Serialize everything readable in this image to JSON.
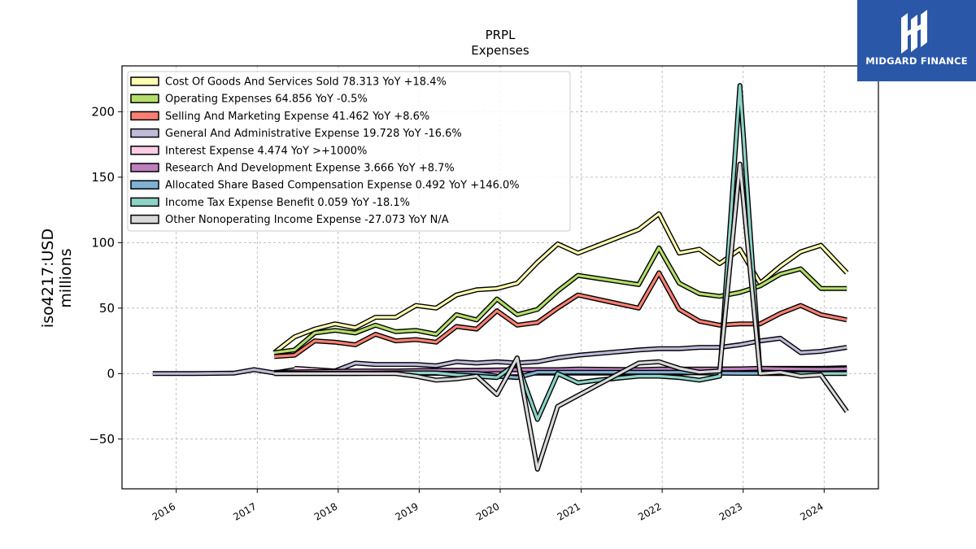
{
  "chart_data": {
    "type": "line",
    "title": "PRPL",
    "subtitle": "Expenses",
    "ylabel": "iso4217:USD",
    "ylabel2": "millions",
    "ylim": [
      -88,
      235
    ],
    "xlim": [
      2015.33,
      2024.67
    ],
    "yticks": [
      -50,
      0,
      50,
      100,
      150,
      200
    ],
    "xticks": [
      "2016",
      "2017",
      "2018",
      "2019",
      "2020",
      "2021",
      "2022",
      "2023",
      "2024"
    ],
    "grid": true,
    "legend_position": "upper-left",
    "series": [
      {
        "name": "Cost Of Goods And Services Sold",
        "latest": "78.313",
        "yoy": "YoY +18.4%",
        "color": "#ffffb3",
        "x": [
          2017.21,
          2017.46,
          2017.71,
          2017.96,
          2018.21,
          2018.46,
          2018.71,
          2018.96,
          2019.21,
          2019.46,
          2019.71,
          2019.96,
          2020.21,
          2020.46,
          2020.71,
          2020.96,
          2021.71,
          2021.96,
          2022.21,
          2022.46,
          2022.71,
          2022.96,
          2023.21,
          2023.46,
          2023.71,
          2023.96,
          2024.28
        ],
        "y": [
          16,
          28,
          34,
          38,
          35,
          43,
          43,
          52,
          50,
          60,
          64,
          65,
          69,
          85,
          99,
          92,
          110,
          122,
          92,
          95,
          84,
          95,
          69,
          82,
          93,
          98,
          77
        ]
      },
      {
        "name": "Operating Expenses",
        "latest": "64.856",
        "yoy": "YoY -0.5%",
        "color": "#b3de69",
        "x": [
          2017.21,
          2017.46,
          2017.71,
          2017.96,
          2018.21,
          2018.46,
          2018.71,
          2018.96,
          2019.21,
          2019.46,
          2019.71,
          2019.96,
          2020.21,
          2020.46,
          2020.71,
          2020.96,
          2021.71,
          2021.96,
          2022.21,
          2022.46,
          2022.71,
          2022.96,
          2023.21,
          2023.46,
          2023.71,
          2023.96,
          2024.28
        ],
        "y": [
          16,
          18,
          31,
          33,
          31,
          37,
          32,
          33,
          30,
          45,
          41,
          57,
          45,
          49,
          63,
          75,
          68,
          96,
          69,
          61,
          59,
          62,
          67,
          76,
          80,
          65,
          65
        ]
      },
      {
        "name": "Selling And Marketing Expense",
        "latest": "41.462",
        "yoy": "YoY +8.6%",
        "color": "#fb8072",
        "x": [
          2017.21,
          2017.46,
          2017.71,
          2017.96,
          2018.21,
          2018.46,
          2018.71,
          2018.96,
          2019.21,
          2019.46,
          2019.71,
          2019.96,
          2020.21,
          2020.46,
          2020.71,
          2020.96,
          2021.71,
          2021.96,
          2022.21,
          2022.46,
          2022.71,
          2022.96,
          2023.21,
          2023.46,
          2023.71,
          2023.96,
          2024.28
        ],
        "y": [
          13,
          14,
          25,
          24,
          22,
          30,
          25,
          26,
          24,
          36,
          34,
          48,
          37,
          39,
          50,
          60,
          50,
          77,
          49,
          40,
          37,
          38,
          38,
          46,
          52,
          45,
          41
        ]
      },
      {
        "name": "General And Administrative Expense",
        "latest": "19.728",
        "yoy": "YoY -16.6%",
        "color": "#bebada",
        "x": [
          2015.71,
          2016.21,
          2016.71,
          2016.96,
          2017.21,
          2017.46,
          2017.71,
          2017.96,
          2018.21,
          2018.46,
          2018.71,
          2018.96,
          2019.21,
          2019.46,
          2019.71,
          2019.96,
          2020.21,
          2020.46,
          2020.71,
          2020.96,
          2021.71,
          2021.96,
          2022.21,
          2022.46,
          2022.71,
          2022.96,
          2023.21,
          2023.46,
          2023.71,
          2023.96,
          2024.28
        ],
        "y": [
          0,
          0,
          0.3,
          3,
          0.5,
          3,
          2,
          2,
          8,
          7,
          7,
          7,
          6,
          9,
          8,
          9,
          8,
          9,
          12,
          14,
          18,
          19,
          19,
          20,
          20,
          22,
          25,
          27,
          16,
          17,
          20
        ]
      },
      {
        "name": "Interest Expense",
        "latest": "4.474",
        "yoy": "YoY >+1000%",
        "color": "#fccde5",
        "x": [
          2017.46,
          2017.71,
          2017.96,
          2018.21,
          2018.46,
          2018.71,
          2018.96,
          2019.21,
          2019.46,
          2019.71,
          2019.96,
          2020.21,
          2020.46,
          2020.71,
          2020.96,
          2021.71,
          2021.96,
          2022.21,
          2022.46,
          2022.71,
          2022.96,
          2023.21,
          2023.46,
          2023.71,
          2023.96,
          2024.28
        ],
        "y": [
          4,
          3,
          2,
          1,
          1,
          1,
          1,
          0.4,
          0.4,
          0.4,
          0.4,
          0.4,
          0.4,
          0.4,
          0.4,
          0.4,
          0.4,
          0.4,
          0.8,
          1.5,
          3,
          4,
          4,
          4,
          4,
          4.5
        ]
      },
      {
        "name": "Research And Development Expense",
        "latest": "3.666",
        "yoy": "YoY +8.7%",
        "color": "#bc80bd",
        "x": [
          2017.21,
          2017.71,
          2018.21,
          2018.71,
          2019.21,
          2019.71,
          2020.21,
          2020.71,
          2020.96,
          2021.71,
          2021.96,
          2022.21,
          2022.46,
          2022.71,
          2022.96,
          2023.21,
          2023.46,
          2023.71,
          2023.96,
          2024.28
        ],
        "y": [
          1,
          1.5,
          2,
          2,
          2.5,
          2.5,
          3,
          3,
          3.5,
          3,
          3.5,
          3.4,
          3.5,
          3.5,
          3.6,
          4,
          3.7,
          3.5,
          3.4,
          3.7
        ]
      },
      {
        "name": "Allocated Share Based Compensation Expense",
        "latest": "0.492",
        "yoy": "YoY +146.0%",
        "color": "#80b1d3",
        "x": [
          2017.21,
          2017.71,
          2018.21,
          2018.71,
          2019.21,
          2019.71,
          2019.96,
          2020.21,
          2020.46,
          2020.71,
          2020.96,
          2021.71,
          2021.96,
          2022.21,
          2022.46,
          2022.71,
          2022.96,
          2023.21,
          2023.46,
          2023.71,
          2023.96,
          2024.28
        ],
        "y": [
          0.2,
          0.2,
          0.2,
          0.2,
          0.2,
          0.2,
          -2,
          -3,
          1,
          1,
          1,
          1,
          1,
          1,
          0.5,
          0.3,
          0.2,
          0.2,
          0.2,
          0.2,
          0.2,
          0.5
        ]
      },
      {
        "name": "Income Tax Expense Benefit",
        "latest": "0.059",
        "yoy": "YoY -18.1%",
        "color": "#8dd3c7",
        "x": [
          2017.21,
          2017.71,
          2018.21,
          2018.71,
          2019.21,
          2019.46,
          2019.71,
          2019.96,
          2020.21,
          2020.46,
          2020.71,
          2020.96,
          2021.21,
          2021.71,
          2021.96,
          2022.21,
          2022.46,
          2022.71,
          2022.96,
          2023.21,
          2023.46,
          2023.71,
          2023.96,
          2024.28
        ],
        "y": [
          0,
          0,
          0,
          0.5,
          0.5,
          -1,
          -2,
          -3,
          8,
          -35,
          0,
          -7,
          -5,
          -2,
          -2,
          -3,
          -5,
          -2,
          220,
          0,
          0,
          0,
          0,
          0.1
        ]
      },
      {
        "name": "Other Nonoperating Income Expense",
        "latest": "-27.073",
        "yoy": "YoY N/A",
        "color": "#d9d9d9",
        "x": [
          2017.21,
          2017.71,
          2018.21,
          2018.71,
          2018.96,
          2019.21,
          2019.46,
          2019.71,
          2019.96,
          2020.21,
          2020.46,
          2020.71,
          2021.71,
          2021.96,
          2022.21,
          2022.46,
          2022.71,
          2022.96,
          2023.21,
          2023.46,
          2023.71,
          2023.96,
          2024.28
        ],
        "y": [
          0,
          0,
          0,
          0,
          -2,
          -5,
          -4,
          -2,
          -16,
          12,
          -73,
          -25,
          8,
          9,
          4,
          1,
          2,
          160,
          0,
          1,
          -2,
          -1,
          -29
        ]
      }
    ]
  },
  "logo": {
    "text": "MIDGARD FINANCE"
  }
}
